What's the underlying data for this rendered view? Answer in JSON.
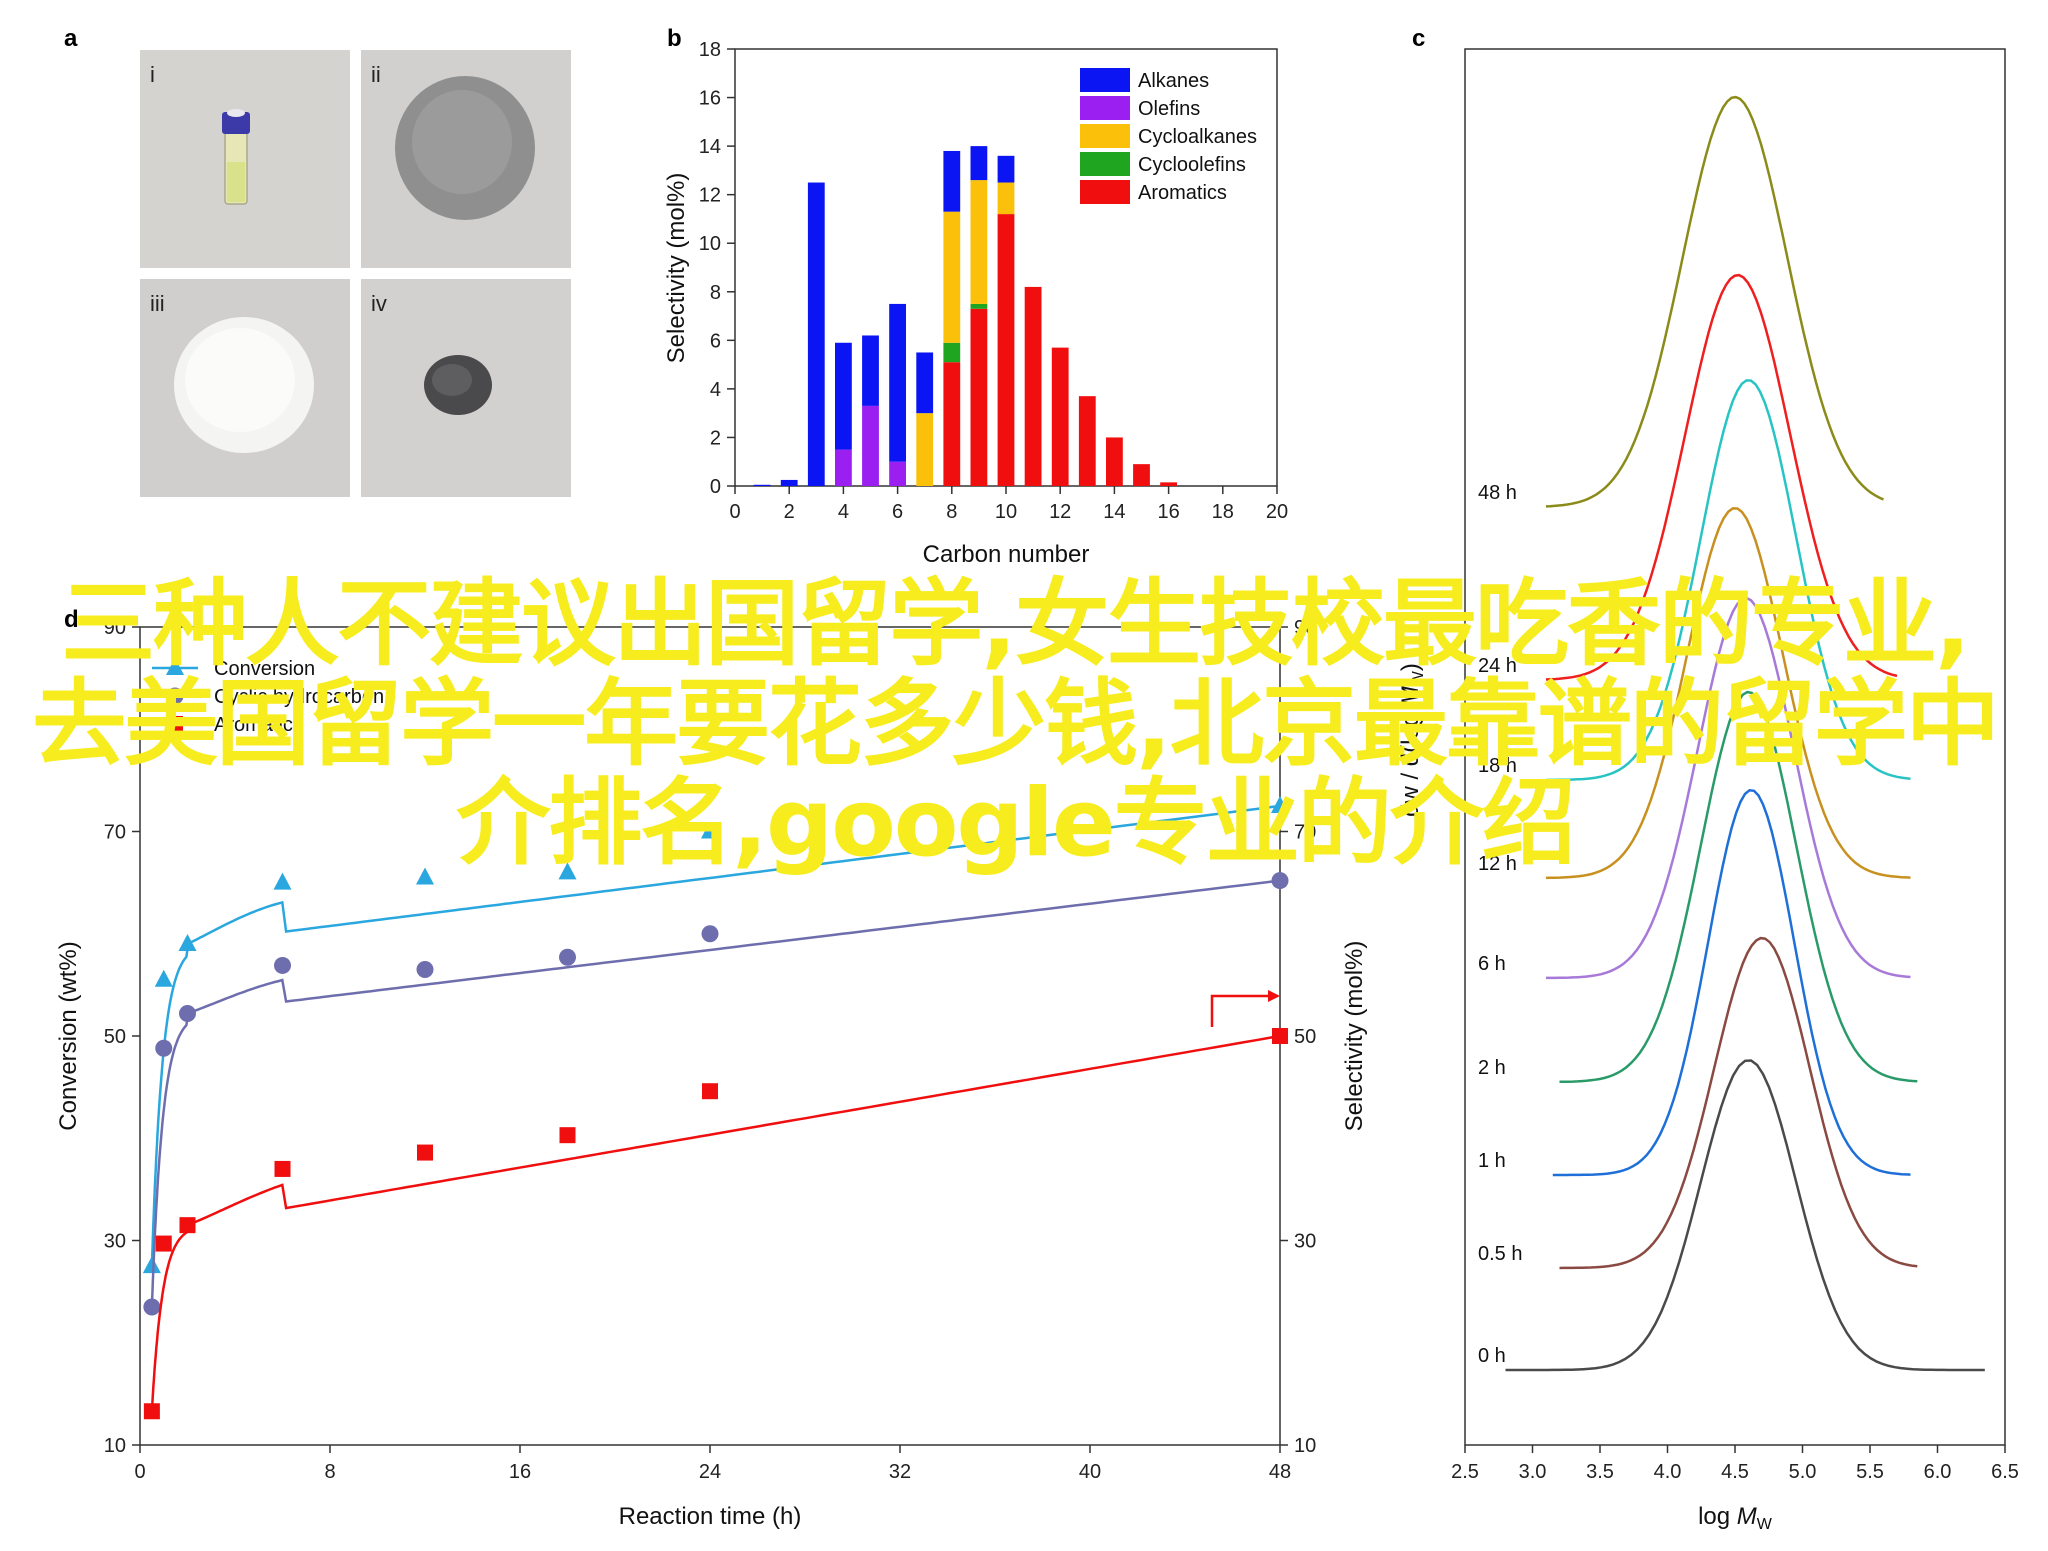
{
  "photos": {
    "panel_label": "a",
    "labels": [
      "i",
      "ii",
      "iii",
      "iv"
    ]
  },
  "overlay_text": "三种人不建议出国留学,女生技校最吃香的专业,去美国留学一年要花多少钱,北京最靠谱的留学中介排名,google专业的介绍",
  "colors": {
    "alkanes": "#0b14f2",
    "olefins": "#9b1ff0",
    "cycloalkanes": "#fbc10a",
    "cycloolefins": "#1fa51f",
    "aromatics": "#f00e0e",
    "conversion": "#2aa7df",
    "cyclic": "#6e6eae",
    "overlay": "#f7ec1e"
  },
  "chart_data": [
    {
      "panel": "b",
      "type": "bar",
      "stacked": true,
      "xlabel": "Carbon number",
      "ylabel": "Selectivity (mol%)",
      "xlim": [
        0,
        20
      ],
      "ylim": [
        0,
        18
      ],
      "xticks": [
        0,
        2,
        4,
        6,
        8,
        10,
        12,
        14,
        16,
        18,
        20
      ],
      "yticks": [
        0,
        2,
        4,
        6,
        8,
        10,
        12,
        14,
        16,
        18
      ],
      "legend_position": "top-right",
      "categories": [
        1,
        2,
        3,
        4,
        5,
        6,
        7,
        8,
        9,
        10,
        11,
        12,
        13,
        14,
        15,
        16
      ],
      "series": [
        {
          "name": "Aromatics",
          "color": "#f00e0e",
          "values": [
            0,
            0,
            0,
            0,
            0,
            0,
            0,
            5.1,
            7.3,
            11.2,
            8.2,
            5.7,
            3.7,
            2.0,
            0.9,
            0.15
          ]
        },
        {
          "name": "Cycloolefins",
          "color": "#1fa51f",
          "values": [
            0,
            0,
            0,
            0,
            0,
            0,
            0,
            0.8,
            0.2,
            0,
            0,
            0,
            0,
            0,
            0,
            0
          ]
        },
        {
          "name": "Cycloalkanes",
          "color": "#fbc10a",
          "values": [
            0,
            0,
            0,
            0,
            0,
            0,
            3.0,
            5.4,
            5.1,
            1.3,
            0,
            0,
            0,
            0,
            0,
            0
          ]
        },
        {
          "name": "Olefins",
          "color": "#9b1ff0",
          "values": [
            0,
            0,
            0,
            1.5,
            3.3,
            1.0,
            0,
            0,
            0,
            0,
            0,
            0,
            0,
            0,
            0,
            0
          ]
        },
        {
          "name": "Alkanes",
          "color": "#0b14f2",
          "values": [
            0.05,
            0.25,
            12.5,
            4.4,
            2.9,
            6.5,
            2.5,
            2.5,
            1.4,
            1.1,
            0,
            0,
            0,
            0,
            0,
            0
          ]
        }
      ],
      "legend_order": [
        "Alkanes",
        "Olefins",
        "Cycloalkanes",
        "Cycloolefins",
        "Aromatics"
      ]
    },
    {
      "panel": "c",
      "type": "line",
      "xlabel": "log M_W",
      "ylabel": "dw / d(log M_W)",
      "xlim": [
        2.5,
        6.5
      ],
      "xticks": [
        "2.5",
        "3.0",
        "3.5",
        "4.0",
        "4.5",
        "5.0",
        "5.5",
        "6.0",
        "6.5"
      ],
      "series": [
        {
          "name": "0 h",
          "color": "#4a4a4a",
          "peak": 4.6,
          "width": 0.5,
          "start": 2.8,
          "end": 6.35
        },
        {
          "name": "0.5 h",
          "color": "#8a4a42",
          "peak": 4.7,
          "width": 0.5,
          "start": 3.2,
          "end": 5.85
        },
        {
          "name": "1 h",
          "color": "#1e6fd8",
          "peak": 4.62,
          "width": 0.45,
          "start": 3.15,
          "end": 5.8
        },
        {
          "name": "2 h",
          "color": "#2a9b68",
          "peak": 4.6,
          "width": 0.5,
          "start": 3.2,
          "end": 5.85
        },
        {
          "name": "6 h",
          "color": "#a779d8",
          "peak": 4.58,
          "width": 0.5,
          "start": 3.1,
          "end": 5.8
        },
        {
          "name": "12 h",
          "color": "#c8901e",
          "peak": 4.5,
          "width": 0.5,
          "start": 3.1,
          "end": 5.8
        },
        {
          "name": "18 h",
          "color": "#28c4c4",
          "peak": 4.6,
          "width": 0.5,
          "start": 3.1,
          "end": 5.8
        },
        {
          "name": "24 h",
          "color": "#ef1f1f",
          "peak": 4.52,
          "width": 0.55,
          "start": 3.1,
          "end": 5.7
        },
        {
          "name": "48 h",
          "color": "#8b8b1a",
          "peak": 4.5,
          "width": 0.55,
          "start": 3.1,
          "end": 5.6
        }
      ]
    },
    {
      "panel": "d",
      "type": "scatter",
      "xlabel": "Reaction time (h)",
      "ylabel_left": "Conversion (wt%)",
      "ylabel_right": "Selectivity (mol%)",
      "xlim": [
        0,
        48
      ],
      "ylim": [
        10,
        90
      ],
      "xticks": [
        0,
        8,
        16,
        24,
        32,
        40,
        48
      ],
      "yticks": [
        10,
        30,
        50,
        70,
        90
      ],
      "legend_position": "top-left",
      "series": [
        {
          "name": "Conversion",
          "color": "#2aa7df",
          "marker": "triangle",
          "x": [
            0.5,
            1,
            2,
            6,
            12,
            18,
            24,
            48
          ],
          "y": [
            27.5,
            55.5,
            59,
            65,
            65.5,
            66,
            70,
            72.5
          ]
        },
        {
          "name": "Cyclic hydrocarbon",
          "color": "#6e6eae",
          "marker": "circle",
          "x": [
            0.5,
            1,
            2,
            6,
            12,
            18,
            24,
            48
          ],
          "y": [
            23.5,
            48.8,
            52.2,
            56.9,
            56.5,
            57.7,
            60,
            65.2
          ]
        },
        {
          "name": "Aromatics",
          "color": "#f00e0e",
          "marker": "square",
          "x": [
            0.5,
            1,
            2,
            6,
            12,
            18,
            24,
            48
          ],
          "y": [
            13.3,
            29.7,
            31.5,
            37,
            38.6,
            40.3,
            44.6,
            50
          ]
        }
      ]
    }
  ]
}
